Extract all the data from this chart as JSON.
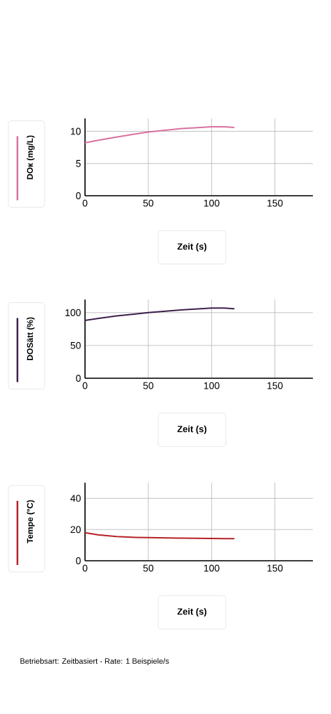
{
  "chart_data": [
    {
      "type": "line",
      "ylabel": "DOк (mg/L)",
      "x": [
        0,
        10,
        25,
        40,
        50,
        75,
        100,
        110,
        118
      ],
      "series": [
        {
          "color": "#d9709f",
          "values": [
            8.2,
            8.6,
            9.1,
            9.6,
            9.9,
            10.4,
            10.7,
            10.7,
            10.6
          ]
        }
      ],
      "xlim": [
        0,
        180
      ],
      "ylim": [
        0,
        12
      ],
      "xticks": [
        0,
        50,
        100,
        150
      ],
      "yticks": [
        0,
        5,
        10
      ],
      "grid": true,
      "xlabel": "Zeit (s)",
      "marker": "none",
      "line_style": "solid"
    },
    {
      "type": "line",
      "ylabel": "DOSätt (%)",
      "x": [
        0,
        10,
        25,
        40,
        50,
        75,
        100,
        110,
        118
      ],
      "series": [
        {
          "color": "#3d1f4a",
          "values": [
            88,
            91,
            95,
            98,
            100,
            104,
            107,
            107,
            106
          ]
        }
      ],
      "xlim": [
        0,
        180
      ],
      "ylim": [
        0,
        120
      ],
      "xticks": [
        0,
        50,
        100,
        150
      ],
      "yticks": [
        0,
        50,
        100
      ],
      "grid": true,
      "xlabel": "Zeit (s)",
      "marker": "none",
      "line_style": "solid"
    },
    {
      "type": "line",
      "ylabel": "Tempe (°C)",
      "x": [
        0,
        10,
        25,
        40,
        50,
        75,
        100,
        110,
        118
      ],
      "series": [
        {
          "color": "#b52025",
          "values": [
            18,
            16.6,
            15.5,
            15,
            14.8,
            14.5,
            14.3,
            14.2,
            14.2
          ]
        }
      ],
      "xlim": [
        0,
        180
      ],
      "ylim": [
        0,
        50
      ],
      "xticks": [
        0,
        50,
        100,
        150
      ],
      "yticks": [
        0,
        20,
        40
      ],
      "grid": true,
      "xlabel": "Zeit (s)",
      "marker": "none",
      "line_style": "solid",
      "annotations": [
        "Betriebsart: Zeitbasiert - Rate: 1 Beispiele/s"
      ]
    }
  ]
}
